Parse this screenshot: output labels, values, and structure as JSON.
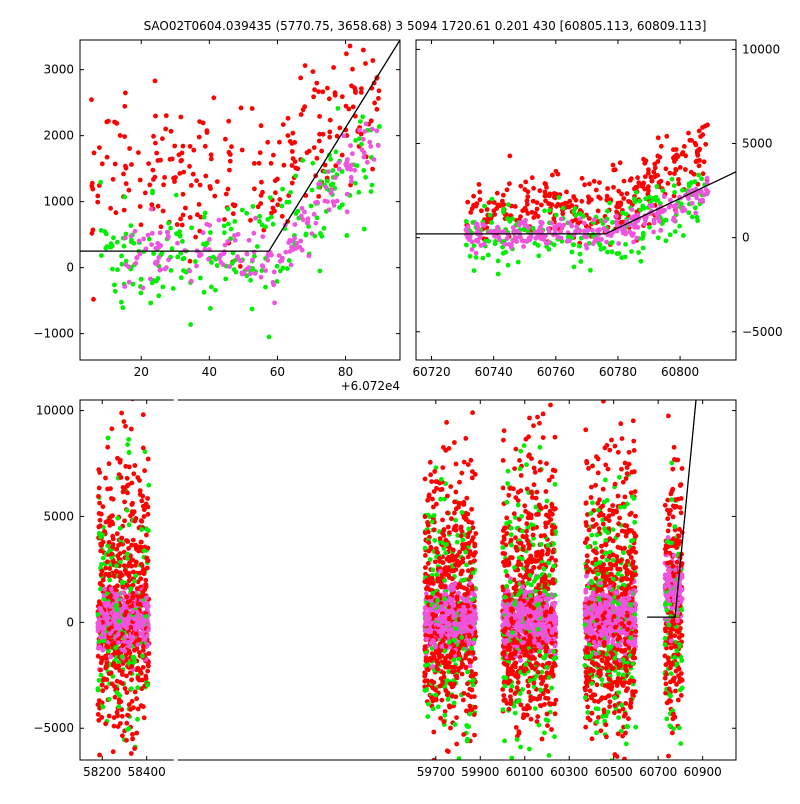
{
  "title": "SAO02T0604.039435 (5770.75, 3658.68)    3 5094 1720.61 0.201 430 [60805.113, 60809.113]",
  "colors": {
    "red": "#ff0000",
    "green": "#00ee00",
    "violet": "#ee55dd",
    "line": "#000000"
  },
  "chart_data": [
    {
      "id": "top-left",
      "type": "scatter",
      "x_offset_label": "+6.072e4",
      "xlim": [
        2,
        96
      ],
      "ylim": [
        -1400,
        3450
      ],
      "xticks": [
        20,
        40,
        60,
        80
      ],
      "xtick_labels": [
        "20",
        "40",
        "60",
        "80"
      ],
      "yticks": [
        -1000,
        0,
        1000,
        2000,
        3000
      ],
      "ytick_labels": [
        "−1000",
        "0",
        "1000",
        "2000",
        "3000"
      ],
      "ytick_side": "left",
      "model_line": {
        "x": [
          2,
          57.5,
          96
        ],
        "y": [
          250,
          250,
          3450
        ]
      },
      "series": [
        {
          "name": "red",
          "x_range": [
            5,
            90
          ],
          "y_center": 1400,
          "y_spread": 900,
          "count": 260,
          "trend_to": 2800
        },
        {
          "name": "green",
          "x_range": [
            8,
            90
          ],
          "y_center": 150,
          "y_spread": 700,
          "count": 220,
          "trend_to": 1900
        },
        {
          "name": "violet",
          "x_range": [
            15,
            90
          ],
          "y_center": 150,
          "y_spread": 400,
          "count": 180,
          "trend_to": 2100
        }
      ]
    },
    {
      "id": "top-right",
      "type": "scatter",
      "xlim": [
        60715,
        60818
      ],
      "ylim": [
        -6500,
        10500
      ],
      "xticks": [
        60720,
        60740,
        60760,
        60780,
        60800
      ],
      "xtick_labels": [
        "60720",
        "60740",
        "60760",
        "60780",
        "60800"
      ],
      "yticks": [
        -5000,
        0,
        5000,
        10000
      ],
      "ytick_labels": [
        "−5000",
        "0",
        "5000",
        "10000"
      ],
      "ytick_side": "right",
      "model_line": {
        "x": [
          60715,
          60776,
          60818
        ],
        "y": [
          200,
          200,
          3500
        ]
      },
      "series": [
        {
          "name": "red",
          "x_range": [
            60731,
            60809
          ],
          "y_center": 1500,
          "y_spread": 1500,
          "count": 320,
          "trend_to": 5000
        },
        {
          "name": "green",
          "x_range": [
            60731,
            60809
          ],
          "y_center": 0,
          "y_spread": 1600,
          "count": 200,
          "trend_to": 2200
        },
        {
          "name": "violet",
          "x_range": [
            60731,
            60809
          ],
          "y_center": 200,
          "y_spread": 600,
          "count": 260,
          "trend_to": 2400
        }
      ]
    },
    {
      "id": "bottom",
      "type": "scatter",
      "xlim": [
        58100,
        61050
      ],
      "ylim": [
        -6500,
        10500
      ],
      "xticks": [
        58200,
        58400,
        59700,
        59900,
        60100,
        60300,
        60500,
        60700,
        60900
      ],
      "xtick_labels": [
        "58200",
        "58400",
        "59700",
        "59900",
        "60100",
        "60300",
        "60500",
        "60700",
        "60900"
      ],
      "yticks": [
        -5000,
        0,
        5000,
        10000
      ],
      "ytick_labels": [
        "−5000",
        "0",
        "5000",
        "10000"
      ],
      "ytick_side": "left",
      "axis_break_after": 58400,
      "model_line": {
        "x": [
          60650,
          60776,
          60870
        ],
        "y": [
          250,
          250,
          10500
        ]
      },
      "seasons": [
        {
          "x_range": [
            58180,
            58410
          ],
          "count": 420
        },
        {
          "x_range": [
            59650,
            59880
          ],
          "count": 420
        },
        {
          "x_range": [
            60000,
            60240
          ],
          "count": 460
        },
        {
          "x_range": [
            60370,
            60600
          ],
          "count": 440
        },
        {
          "x_range": [
            60730,
            60809
          ],
          "count": 160
        }
      ]
    }
  ]
}
